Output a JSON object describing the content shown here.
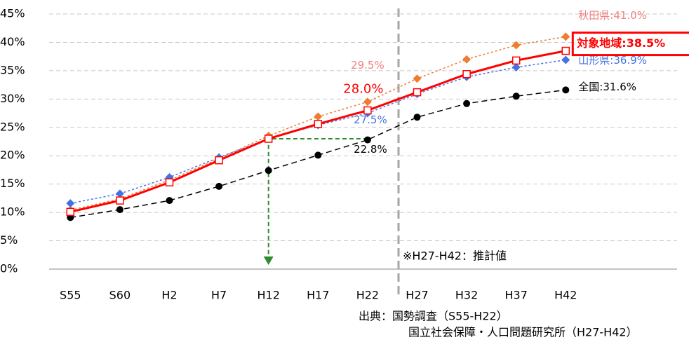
{
  "chart_data": {
    "type": "line",
    "categories": [
      "S55",
      "S60",
      "H2",
      "H7",
      "H12",
      "H17",
      "H22",
      "H27",
      "H32",
      "H37",
      "H42"
    ],
    "series": [
      {
        "color": "#000000",
        "dash": "8 5",
        "marker": "circle",
        "label_color": "#000000",
        "values": [
          9.1,
          10.5,
          12.1,
          14.6,
          17.4,
          20.1,
          22.8,
          26.8,
          29.2,
          30.5,
          31.6
        ],
        "value_labels": [
          null,
          null,
          null,
          null,
          null,
          null,
          "22.8%",
          null,
          null,
          null,
          "全国:31.6%"
        ]
      },
      {
        "color": "#ed7d31",
        "dash": "3 3",
        "marker": "diamond",
        "label_color": "#f08080",
        "values": [
          10.4,
          12.4,
          15.7,
          19.5,
          23.5,
          26.9,
          29.5,
          33.6,
          37.0,
          39.5,
          41.0
        ],
        "value_labels": [
          null,
          null,
          null,
          null,
          null,
          null,
          "29.5%",
          null,
          null,
          null,
          "秋田県:41.0%"
        ]
      },
      {
        "color": "#4472e4",
        "dash": "3 3",
        "marker": "diamond",
        "label_color": "#4472e4",
        "values": [
          11.6,
          13.3,
          16.2,
          19.7,
          23.0,
          25.4,
          27.5,
          30.9,
          33.9,
          35.6,
          36.9
        ],
        "value_labels": [
          null,
          null,
          null,
          null,
          null,
          null,
          "27.5%",
          null,
          null,
          null,
          "山形県:36.9%"
        ]
      },
      {
        "color": "#ff0000",
        "dash": null,
        "marker": "square",
        "label_color": "#ff0000",
        "values": [
          10.1,
          12.1,
          15.3,
          19.2,
          23.0,
          25.6,
          28.0,
          31.2,
          34.4,
          36.8,
          38.5
        ],
        "value_labels": [
          null,
          null,
          null,
          null,
          null,
          null,
          "28.0%",
          null,
          null,
          null,
          "対象地域:38.5%"
        ]
      }
    ],
    "ylim": [
      0,
      45
    ],
    "yticks": [
      {
        "value": 0,
        "label": "0%"
      },
      {
        "value": 5,
        "label": "5%"
      },
      {
        "value": 10,
        "label": "10%"
      },
      {
        "value": 15,
        "label": "15%"
      },
      {
        "value": 20,
        "label": "20%"
      },
      {
        "value": 25,
        "label": "25%"
      },
      {
        "value": 30,
        "label": "30%"
      },
      {
        "value": 35,
        "label": "35%"
      },
      {
        "value": 40,
        "label": "40%"
      },
      {
        "value": 45,
        "label": "45%"
      }
    ],
    "grid": true,
    "annotations": [
      "※H27-H42：推計値",
      "出典：国勢調査（S55-H22）",
      "国立社会保障・人口問題研究所（H27-H42）"
    ]
  }
}
